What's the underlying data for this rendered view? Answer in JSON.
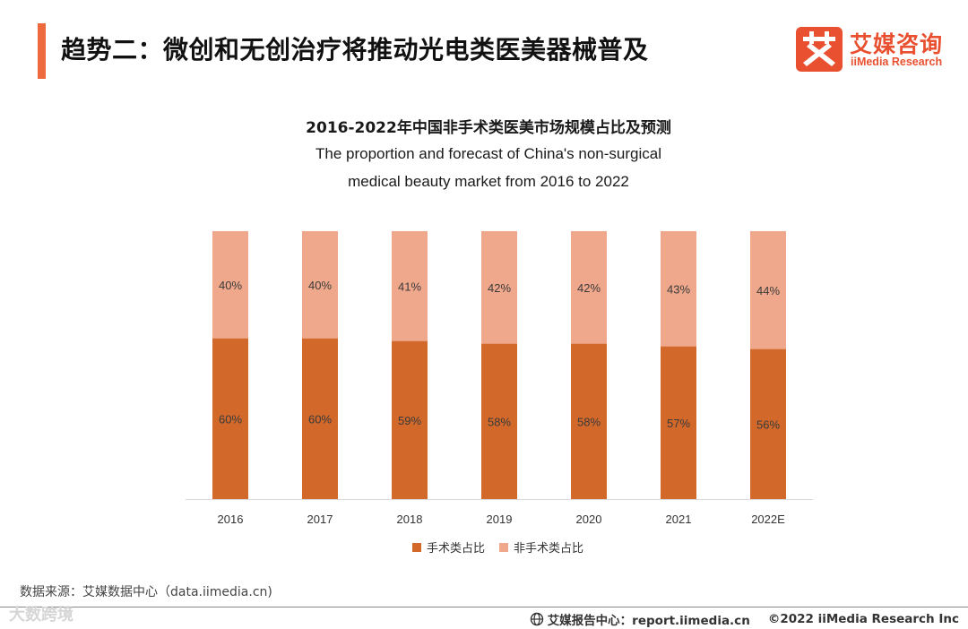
{
  "slide": {
    "title": "趋势二：微创和无创治疗将推动光电类医美器械普及"
  },
  "logo": {
    "cn_name": "艾媒咨询",
    "en_name": "iiMedia Research",
    "mark_char": "艾"
  },
  "chart": {
    "title_cn": "2016-2022年中国非手术类医美市场规模占比及预测",
    "title_en_line1": "The proportion and forecast of China's non-surgical",
    "title_en_line2": "medical beauty market from 2016 to 2022"
  },
  "chart_data": {
    "type": "bar",
    "stacked": true,
    "normalized": true,
    "title": "2016-2022年中国非手术类医美市场规模占比及预测",
    "categories": [
      "2016",
      "2017",
      "2018",
      "2019",
      "2020",
      "2021",
      "2022E"
    ],
    "series": [
      {
        "name": "手术类占比",
        "color": "#d2692b",
        "values": [
          60,
          60,
          59,
          58,
          58,
          57,
          56
        ],
        "labels": [
          "60%",
          "60%",
          "59%",
          "58%",
          "58%",
          "57%",
          "56%"
        ]
      },
      {
        "name": "非手术类占比",
        "color": "#f0a88c",
        "values": [
          40,
          40,
          41,
          42,
          42,
          43,
          44
        ],
        "labels": [
          "40%",
          "40%",
          "41%",
          "42%",
          "42%",
          "43%",
          "44%"
        ]
      }
    ],
    "ylim": [
      0,
      100
    ],
    "legend_position": "bottom",
    "grid": false
  },
  "legend": {
    "items": [
      {
        "label": "手术类占比",
        "color": "#d2692b"
      },
      {
        "label": "非手术类占比",
        "color": "#f0a88c"
      }
    ]
  },
  "source": {
    "text": "数据来源：艾媒数据中心（data.iimedia.cn)"
  },
  "footer": {
    "report_label": "艾媒报告中心：report.iimedia.cn",
    "copyright": "©2022  iiMedia Research  Inc",
    "watermark": "大数跨境"
  }
}
